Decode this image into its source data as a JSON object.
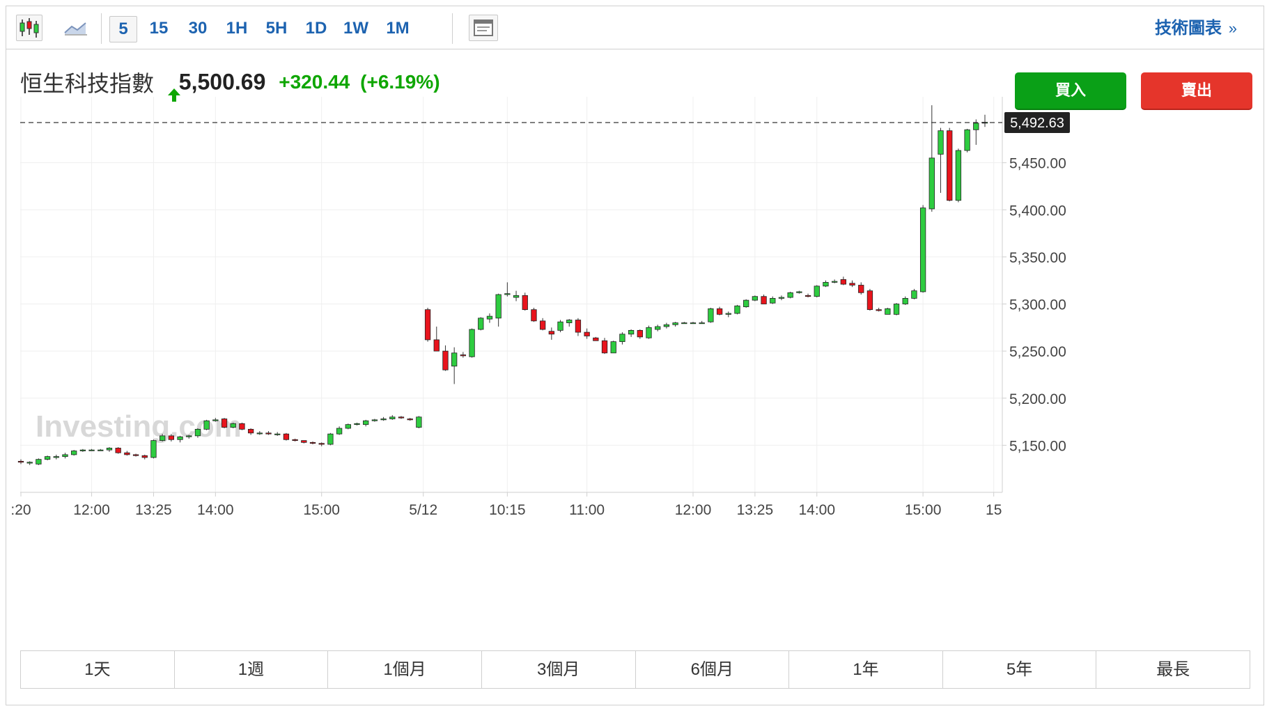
{
  "toolbar": {
    "icons": {
      "candles": "candlestick-icon",
      "area": "area-chart-icon",
      "layout": "layout-icon"
    },
    "timeframes": [
      "5",
      "15",
      "30",
      "1H",
      "5H",
      "1D",
      "1W",
      "1M"
    ],
    "active_timeframe": "5",
    "tech_link": "技術圖表",
    "tech_arrow": "»"
  },
  "quote": {
    "name": "恒生科技指數",
    "last": "5,500.69",
    "change": "+320.44",
    "change_pct": "(+6.19%)",
    "direction": "up"
  },
  "buttons": {
    "buy": "買入",
    "sell": "賣出"
  },
  "colors": {
    "up": "#2ecc40",
    "down": "#e8141d",
    "change_text": "#0ea600",
    "link": "#1d63b0",
    "buy": "#0aa017",
    "sell": "#e5352b"
  },
  "chart_data": {
    "type": "candlestick",
    "ylim": [
      5100,
      5520
    ],
    "y_ticks": [
      5150,
      5200,
      5250,
      5300,
      5350,
      5400,
      5450
    ],
    "y_tick_labels": [
      "5,150.00",
      "5,200.00",
      "5,250.00",
      "5,300.00",
      "5,350.00",
      "5,400.00",
      "5,450.00"
    ],
    "x_labels": [
      {
        "label": ":20",
        "index": 0
      },
      {
        "label": "12:00",
        "index": 8
      },
      {
        "label": "13:25",
        "index": 15
      },
      {
        "label": "14:00",
        "index": 22
      },
      {
        "label": "15:00",
        "index": 34
      },
      {
        "label": "5/12",
        "index": 45.5
      },
      {
        "label": "10:15",
        "index": 55
      },
      {
        "label": "11:00",
        "index": 64
      },
      {
        "label": "12:00",
        "index": 76
      },
      {
        "label": "13:25",
        "index": 83
      },
      {
        "label": "14:00",
        "index": 90
      },
      {
        "label": "15:00",
        "index": 102
      },
      {
        "label": "15",
        "index": 110
      }
    ],
    "current_price": 5492.63,
    "current_price_label": "5,492.63",
    "watermark": "Investing.com",
    "candles": [
      [
        5133,
        5135,
        5130,
        5132
      ],
      [
        5131,
        5133,
        5129,
        5132
      ],
      [
        5130,
        5136,
        5129,
        5135
      ],
      [
        5135,
        5139,
        5134,
        5138
      ],
      [
        5137,
        5140,
        5135,
        5138
      ],
      [
        5138,
        5142,
        5136,
        5140
      ],
      [
        5140,
        5145,
        5139,
        5144
      ],
      [
        5144,
        5146,
        5143,
        5145
      ],
      [
        5145,
        5146,
        5144,
        5145
      ],
      [
        5145,
        5146,
        5144,
        5145
      ],
      [
        5145,
        5148,
        5143,
        5147
      ],
      [
        5147,
        5148,
        5141,
        5142
      ],
      [
        5142,
        5144,
        5139,
        5140
      ],
      [
        5140,
        5141,
        5138,
        5139
      ],
      [
        5139,
        5140,
        5135,
        5137
      ],
      [
        5137,
        5156,
        5136,
        5155
      ],
      [
        5155,
        5162,
        5154,
        5160
      ],
      [
        5160,
        5162,
        5154,
        5156
      ],
      [
        5156,
        5160,
        5153,
        5159
      ],
      [
        5159,
        5161,
        5157,
        5160
      ],
      [
        5160,
        5168,
        5158,
        5167
      ],
      [
        5167,
        5177,
        5166,
        5176
      ],
      [
        5176,
        5179,
        5175,
        5177
      ],
      [
        5178,
        5179,
        5168,
        5169
      ],
      [
        5169,
        5174,
        5168,
        5173
      ],
      [
        5173,
        5174,
        5166,
        5167
      ],
      [
        5167,
        5168,
        5161,
        5163
      ],
      [
        5163,
        5165,
        5161,
        5163
      ],
      [
        5163,
        5165,
        5161,
        5162
      ],
      [
        5162,
        5164,
        5160,
        5162
      ],
      [
        5162,
        5163,
        5155,
        5156
      ],
      [
        5156,
        5157,
        5154,
        5155
      ],
      [
        5155,
        5155,
        5152,
        5153
      ],
      [
        5153,
        5154,
        5151,
        5152
      ],
      [
        5152,
        5153,
        5149,
        5151
      ],
      [
        5151,
        5163,
        5150,
        5162
      ],
      [
        5162,
        5170,
        5161,
        5168
      ],
      [
        5168,
        5173,
        5167,
        5172
      ],
      [
        5172,
        5174,
        5171,
        5173
      ],
      [
        5172,
        5177,
        5170,
        5176
      ],
      [
        5176,
        5178,
        5175,
        5177
      ],
      [
        5177,
        5180,
        5176,
        5178
      ],
      [
        5178,
        5182,
        5177,
        5180
      ],
      [
        5180,
        5181,
        5178,
        5179
      ],
      [
        5178,
        5179,
        5176,
        5177
      ],
      [
        5169,
        5181,
        5168,
        5180
      ],
      [
        5294,
        5296,
        5260,
        5262
      ],
      [
        5262,
        5276,
        5250,
        5250
      ],
      [
        5250,
        5256,
        5229,
        5230
      ],
      [
        5234,
        5254,
        5215,
        5248
      ],
      [
        5246,
        5249,
        5243,
        5245
      ],
      [
        5244,
        5274,
        5243,
        5273
      ],
      [
        5273,
        5286,
        5272,
        5285
      ],
      [
        5284,
        5290,
        5280,
        5287
      ],
      [
        5285,
        5311,
        5276,
        5310
      ],
      [
        5310,
        5323,
        5308,
        5311
      ],
      [
        5307,
        5314,
        5303,
        5309
      ],
      [
        5309,
        5312,
        5293,
        5294
      ],
      [
        5294,
        5296,
        5281,
        5282
      ],
      [
        5282,
        5285,
        5272,
        5273
      ],
      [
        5271,
        5275,
        5262,
        5268
      ],
      [
        5272,
        5283,
        5270,
        5281
      ],
      [
        5280,
        5284,
        5276,
        5283
      ],
      [
        5283,
        5285,
        5266,
        5270
      ],
      [
        5270,
        5274,
        5263,
        5266
      ],
      [
        5264,
        5265,
        5261,
        5261
      ],
      [
        5261,
        5264,
        5247,
        5248
      ],
      [
        5248,
        5261,
        5248,
        5260
      ],
      [
        5260,
        5270,
        5257,
        5268
      ],
      [
        5268,
        5273,
        5265,
        5272
      ],
      [
        5272,
        5273,
        5263,
        5265
      ],
      [
        5264,
        5277,
        5263,
        5275
      ],
      [
        5273,
        5278,
        5271,
        5276
      ],
      [
        5276,
        5280,
        5274,
        5278
      ],
      [
        5278,
        5281,
        5276,
        5280
      ],
      [
        5280,
        5281,
        5279,
        5280
      ],
      [
        5280,
        5281,
        5279,
        5280
      ],
      [
        5280,
        5282,
        5279,
        5280
      ],
      [
        5281,
        5296,
        5280,
        5295
      ],
      [
        5295,
        5297,
        5288,
        5289
      ],
      [
        5289,
        5292,
        5286,
        5290
      ],
      [
        5290,
        5299,
        5289,
        5298
      ],
      [
        5297,
        5305,
        5296,
        5304
      ],
      [
        5304,
        5309,
        5303,
        5308
      ],
      [
        5308,
        5310,
        5300,
        5300
      ],
      [
        5301,
        5308,
        5300,
        5306
      ],
      [
        5306,
        5309,
        5304,
        5307
      ],
      [
        5307,
        5313,
        5306,
        5312
      ],
      [
        5312,
        5314,
        5311,
        5313
      ],
      [
        5309,
        5311,
        5307,
        5308
      ],
      [
        5308,
        5320,
        5307,
        5319
      ],
      [
        5319,
        5325,
        5318,
        5323
      ],
      [
        5323,
        5326,
        5322,
        5324
      ],
      [
        5326,
        5329,
        5320,
        5321
      ],
      [
        5322,
        5325,
        5318,
        5320
      ],
      [
        5320,
        5323,
        5310,
        5312
      ],
      [
        5314,
        5316,
        5293,
        5294
      ],
      [
        5294,
        5296,
        5292,
        5293
      ],
      [
        5289,
        5296,
        5289,
        5295
      ],
      [
        5289,
        5301,
        5288,
        5300
      ],
      [
        5300,
        5308,
        5299,
        5306
      ],
      [
        5306,
        5316,
        5305,
        5314
      ],
      [
        5313,
        5405,
        5312,
        5402
      ],
      [
        5401,
        5511,
        5398,
        5455
      ],
      [
        5459,
        5487,
        5418,
        5484
      ],
      [
        5484,
        5487,
        5409,
        5410
      ],
      [
        5410,
        5465,
        5408,
        5463
      ],
      [
        5463,
        5486,
        5461,
        5485
      ],
      [
        5485,
        5496,
        5469,
        5492
      ],
      [
        5492,
        5501,
        5488,
        5493
      ]
    ]
  }
}
